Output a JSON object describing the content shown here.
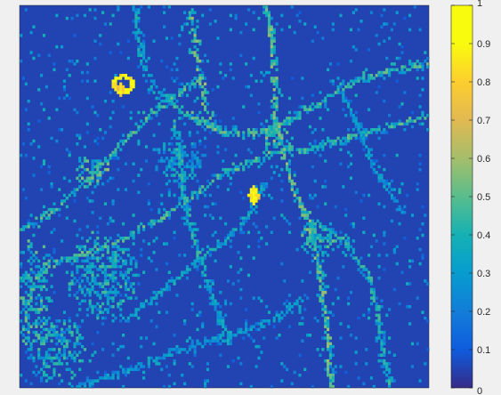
{
  "chart_data": {
    "type": "heatmap",
    "title": "",
    "xlabel": "",
    "ylabel": "",
    "colormap": "parula",
    "clim": [
      0,
      1
    ],
    "colorbar": {
      "location": "right",
      "ticks": [
        0,
        0.1,
        0.2,
        0.3,
        0.4,
        0.5,
        0.6,
        0.7,
        0.8,
        0.9,
        1
      ],
      "tick_labels": [
        "0",
        "0.1",
        "0.2",
        "0.3",
        "0.4",
        "0.5",
        "0.6",
        "0.7",
        "0.8",
        "0.9",
        "1"
      ]
    },
    "grid_size": [
      160,
      134
    ],
    "background_value": 0.05,
    "axis_ticks_visible": false,
    "structures": {
      "curves": [
        {
          "value": 0.45,
          "points": [
            [
              0,
              78
            ],
            [
              12,
              72
            ],
            [
              22,
              64
            ],
            [
              35,
              52
            ],
            [
              48,
              40
            ],
            [
              58,
              32
            ],
            [
              70,
              26
            ]
          ]
        },
        {
          "value": 0.45,
          "points": [
            [
              0,
              96
            ],
            [
              14,
              90
            ],
            [
              26,
              86
            ],
            [
              40,
              82
            ],
            [
              55,
              74
            ],
            [
              68,
              66
            ],
            [
              80,
              58
            ],
            [
              92,
              54
            ],
            [
              102,
              50
            ]
          ]
        },
        {
          "value": 0.5,
          "points": [
            [
              66,
              0
            ],
            [
              68,
              10
            ],
            [
              70,
              22
            ],
            [
              72,
              35
            ],
            [
              76,
              44
            ]
          ]
        },
        {
          "value": 0.4,
          "points": [
            [
              60,
              40
            ],
            [
              62,
              52
            ],
            [
              63,
              64
            ],
            [
              66,
              76
            ],
            [
              70,
              88
            ]
          ]
        },
        {
          "value": 0.45,
          "points": [
            [
              55,
              30
            ],
            [
              62,
              36
            ],
            [
              70,
              40
            ],
            [
              80,
              44
            ],
            [
              90,
              44
            ],
            [
              100,
              44
            ]
          ]
        },
        {
          "value": 0.5,
          "points": [
            [
              96,
              0
            ],
            [
              98,
              12
            ],
            [
              99,
              26
            ],
            [
              100,
              40
            ],
            [
              102,
              50
            ],
            [
              106,
              62
            ],
            [
              112,
              74
            ],
            [
              116,
              88
            ],
            [
              118,
              100
            ],
            [
              120,
              116
            ],
            [
              121,
              134
            ]
          ]
        },
        {
          "value": 0.45,
          "points": [
            [
              94,
              44
            ],
            [
              104,
              40
            ],
            [
              116,
              34
            ],
            [
              130,
              26
            ],
            [
              145,
              22
            ],
            [
              160,
              20
            ]
          ]
        },
        {
          "value": 0.45,
          "points": [
            [
              102,
              50
            ],
            [
              114,
              50
            ],
            [
              128,
              46
            ],
            [
              144,
              42
            ],
            [
              160,
              38
            ]
          ]
        },
        {
          "value": 0.35,
          "points": [
            [
              40,
              110
            ],
            [
              55,
              100
            ],
            [
              68,
              90
            ],
            [
              80,
              82
            ],
            [
              90,
              72
            ],
            [
              95,
              62
            ]
          ]
        },
        {
          "value": 0.35,
          "points": [
            [
              70,
              88
            ],
            [
              74,
              100
            ],
            [
              78,
              110
            ],
            [
              82,
              118
            ]
          ]
        },
        {
          "value": 0.3,
          "points": [
            [
              20,
              134
            ],
            [
              40,
              128
            ],
            [
              62,
              120
            ],
            [
              80,
              116
            ],
            [
              98,
              110
            ],
            [
              110,
              102
            ]
          ]
        },
        {
          "value": 0.4,
          "points": [
            [
              112,
              74
            ],
            [
              126,
              82
            ],
            [
              136,
              94
            ],
            [
              140,
              110
            ],
            [
              142,
              124
            ],
            [
              144,
              134
            ]
          ]
        },
        {
          "value": 0.35,
          "points": [
            [
              45,
              0
            ],
            [
              46,
              10
            ],
            [
              48,
              20
            ],
            [
              52,
              28
            ]
          ]
        },
        {
          "value": 0.3,
          "points": [
            [
              125,
              30
            ],
            [
              132,
              42
            ],
            [
              138,
              56
            ],
            [
              144,
              66
            ],
            [
              150,
              72
            ]
          ]
        }
      ],
      "regions": [
        {
          "cx": 5,
          "cy": 100,
          "rx": 8,
          "ry": 20,
          "value": 0.45
        },
        {
          "cx": 28,
          "cy": 58,
          "rx": 7,
          "ry": 6,
          "value": 0.5
        },
        {
          "cx": 100,
          "cy": 46,
          "rx": 6,
          "ry": 6,
          "value": 0.5
        },
        {
          "cx": 32,
          "cy": 94,
          "rx": 14,
          "ry": 16,
          "value": 0.4
        },
        {
          "cx": 14,
          "cy": 120,
          "rx": 12,
          "ry": 12,
          "value": 0.4
        },
        {
          "cx": 116,
          "cy": 82,
          "rx": 7,
          "ry": 6,
          "value": 0.45
        },
        {
          "cx": 62,
          "cy": 54,
          "rx": 10,
          "ry": 8,
          "value": 0.35
        }
      ],
      "hotspots": [
        {
          "cx": 40,
          "cy": 27,
          "rx": 4,
          "ry": 3,
          "value": 0.95,
          "ring": true
        },
        {
          "cx": 39,
          "cy": 29,
          "rx": 2,
          "ry": 2,
          "value": 0.8
        },
        {
          "cx": 91,
          "cy": 66,
          "rx": 2,
          "ry": 3,
          "value": 0.9
        },
        {
          "cx": 92,
          "cy": 67,
          "rx": 1,
          "ry": 1,
          "value": 0.75
        }
      ]
    }
  }
}
